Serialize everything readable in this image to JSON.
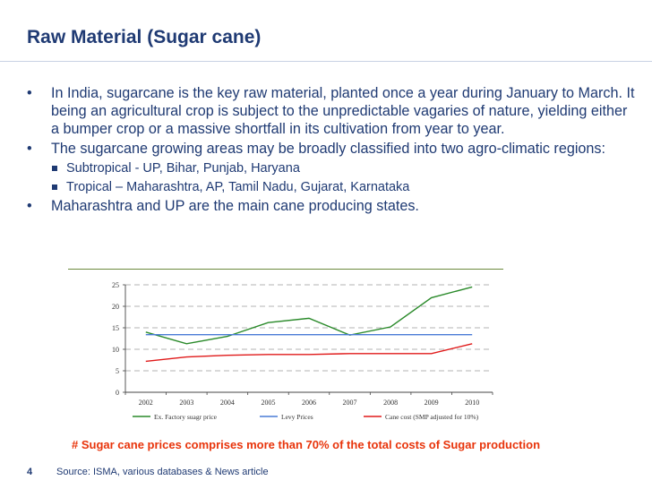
{
  "slide": {
    "title": "Raw Material (Sugar cane)",
    "bullets": [
      {
        "marker": "•",
        "text": "In India, sugarcane is the key raw material, planted once a year during January to March. It being an agricultural crop is subject to the unpredictable vagaries of nature, yielding either a bumper crop or a massive shortfall in its cultivation from year to year."
      },
      {
        "marker": "•",
        "text": "The sugarcane growing areas may be broadly classified into two agro-climatic regions:"
      }
    ],
    "subbullets": [
      {
        "text": "Subtropical -  UP, Bihar, Punjab, Haryana"
      },
      {
        "text": "Tropical – Maharashtra, AP, Tamil Nadu, Gujarat, Karnataka"
      }
    ],
    "last_bullet": {
      "marker": "•",
      "text": "Maharashtra and UP are the main cane producing states."
    },
    "note": "# Sugar cane prices comprises more than 70% of the total costs of Sugar production",
    "page_number": "4",
    "source": "Source: ISMA, various databases & News article"
  },
  "chart_data": {
    "type": "line",
    "x": [
      "2002",
      "2003",
      "2004",
      "2005",
      "2006",
      "2007",
      "2008",
      "2009",
      "2010"
    ],
    "ylim": [
      0,
      25
    ],
    "yticks": [
      "0",
      "5",
      "10",
      "15",
      "20",
      "25"
    ],
    "grid": "horizontal dashed",
    "legend_position": "bottom",
    "series": [
      {
        "name": "Ex. Factory suagr price",
        "color": "#2a8a2a",
        "values": [
          14.0,
          11.3,
          13.0,
          16.2,
          17.2,
          13.3,
          15.2,
          22.0,
          24.5
        ]
      },
      {
        "name": "Levy Prices",
        "color": "#4a7bd6",
        "values": [
          13.4,
          13.4,
          13.4,
          13.4,
          13.4,
          13.4,
          13.4,
          13.4,
          13.4
        ]
      },
      {
        "name": "Cane cost (SMP adjusted for 10%)",
        "color": "#e01a1a",
        "values": [
          7.2,
          8.2,
          8.6,
          8.8,
          8.8,
          9.0,
          9.0,
          9.0,
          11.3
        ]
      }
    ]
  }
}
